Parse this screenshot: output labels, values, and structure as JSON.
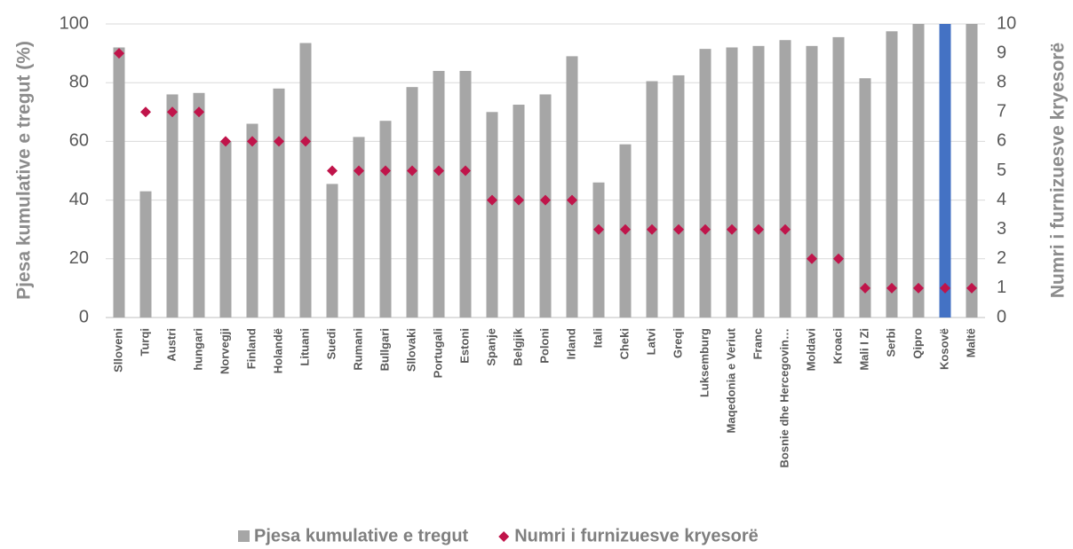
{
  "chart_data": {
    "type": "bar",
    "y_label": "Pjesa kumulative e tregut  (%)",
    "y2_label": "Numri i furnizuesve kryesorë",
    "categories": [
      "Slloveni",
      "Turqi",
      "Austri",
      "hungari",
      "Norvegji",
      "Finland",
      "Holandë",
      "Lituani",
      "Suedi",
      "Rumani",
      "Bullgari",
      "Sllovaki",
      "Portugali",
      "Estoni",
      "Spanje",
      "Belgjik",
      "Poloni",
      "Irland",
      "Itali",
      "Cheki",
      "Latvi",
      "Greqi",
      "Luksemburg",
      "Maqedonia e Veriut",
      "Franc",
      "Bosnie dhe Hercegovin…",
      "Moldavi",
      "Kroaci",
      "Mali I Zi",
      "Serbi",
      "Qipro",
      "Kosovë",
      "Maltë"
    ],
    "series": [
      {
        "name": "Pjesa kumulative e tregut",
        "type": "bar",
        "color": "#a6a6a6",
        "colors": [
          "#a6a6a6",
          "#a6a6a6",
          "#a6a6a6",
          "#a6a6a6",
          "#a6a6a6",
          "#a6a6a6",
          "#a6a6a6",
          "#a6a6a6",
          "#a6a6a6",
          "#a6a6a6",
          "#a6a6a6",
          "#a6a6a6",
          "#a6a6a6",
          "#a6a6a6",
          "#a6a6a6",
          "#a6a6a6",
          "#a6a6a6",
          "#a6a6a6",
          "#a6a6a6",
          "#a6a6a6",
          "#a6a6a6",
          "#a6a6a6",
          "#a6a6a6",
          "#a6a6a6",
          "#a6a6a6",
          "#a6a6a6",
          "#a6a6a6",
          "#a6a6a6",
          "#a6a6a6",
          "#a6a6a6",
          "#a6a6a6",
          "#4472c4",
          "#a6a6a6"
        ],
        "values": [
          92,
          43,
          76,
          76.5,
          60,
          66,
          78,
          93.5,
          45.5,
          61.5,
          67,
          78.5,
          84,
          84,
          70,
          72.5,
          76,
          89,
          46,
          59,
          80.5,
          82.5,
          91.5,
          92,
          92.5,
          94.5,
          92.5,
          95.5,
          81.5,
          97.5,
          100,
          100,
          100
        ]
      },
      {
        "name": "Numri i furnizuesve kryesorë",
        "type": "scatter",
        "axis": "y2",
        "color": "#c0144a",
        "values": [
          9,
          7,
          7,
          7,
          6,
          6,
          6,
          6,
          5,
          5,
          5,
          5,
          5,
          5,
          4,
          4,
          4,
          4,
          3,
          3,
          3,
          3,
          3,
          3,
          3,
          3,
          2,
          2,
          1,
          1,
          1,
          1,
          1
        ]
      }
    ],
    "ylim": [
      0,
      100
    ],
    "yticks": [
      0,
      20,
      40,
      60,
      80,
      100
    ],
    "y2lim": [
      0,
      10
    ],
    "y2ticks": [
      0,
      1,
      2,
      3,
      4,
      5,
      6,
      7,
      8,
      9,
      10
    ],
    "grid": true,
    "legend": "bottom"
  }
}
